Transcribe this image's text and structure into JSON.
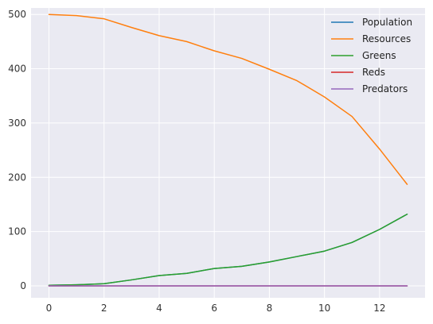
{
  "chart_data": {
    "type": "line",
    "title": "",
    "xlabel": "",
    "ylabel": "",
    "x": [
      0,
      1,
      2,
      3,
      4,
      5,
      6,
      7,
      8,
      9,
      10,
      11,
      12,
      13
    ],
    "xlim": [
      -0.65,
      13.65
    ],
    "ylim": [
      -22,
      512
    ],
    "xticks": [
      0,
      2,
      4,
      6,
      8,
      10,
      12
    ],
    "yticks": [
      0,
      100,
      200,
      300,
      400,
      500
    ],
    "grid": true,
    "legend_position": "top-right",
    "background_color": "#eaeaf2",
    "series": [
      {
        "name": "Population",
        "color": "#1f77b4",
        "values": [
          1,
          2,
          4,
          11,
          19,
          23,
          32,
          36,
          44,
          54,
          64,
          80,
          104,
          132
        ]
      },
      {
        "name": "Resources",
        "color": "#ff7f0e",
        "values": [
          500,
          498,
          492,
          476,
          461,
          450,
          433,
          419,
          399,
          378,
          348,
          312,
          252,
          187
        ]
      },
      {
        "name": "Greens",
        "color": "#2ca02c",
        "values": [
          1,
          2,
          4,
          11,
          19,
          23,
          32,
          36,
          44,
          54,
          64,
          80,
          104,
          132
        ]
      },
      {
        "name": "Reds",
        "color": "#d62728",
        "values": [
          0,
          0,
          0,
          0,
          0,
          0,
          0,
          0,
          0,
          0,
          0,
          0,
          0,
          0
        ]
      },
      {
        "name": "Predators",
        "color": "#9467bd",
        "values": [
          0,
          0,
          0,
          0,
          0,
          0,
          0,
          0,
          0,
          0,
          0,
          0,
          0,
          0
        ]
      }
    ]
  }
}
